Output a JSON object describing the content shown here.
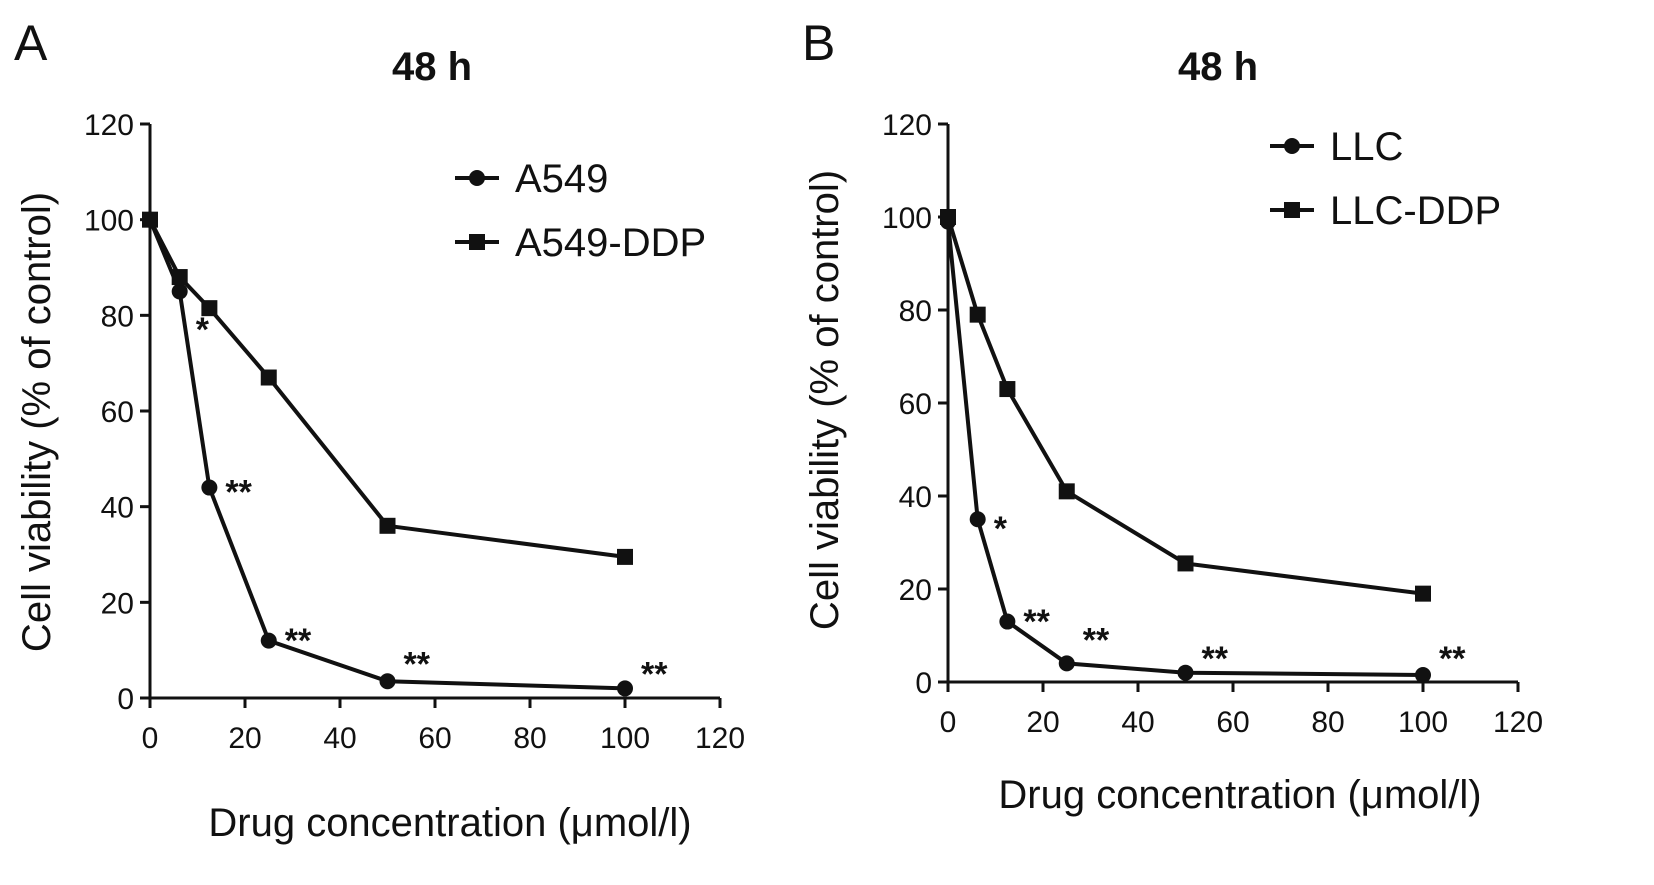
{
  "chart_data": [
    {
      "panel": "A",
      "type": "line",
      "title": "48 h",
      "xlabel": "Drug concentration (μmol/l)",
      "ylabel": "Cell viability  (% of control)",
      "xlim": [
        0,
        120
      ],
      "ylim": [
        0,
        120
      ],
      "xticks": [
        "0",
        "20",
        "40",
        "60",
        "80",
        "100",
        "120"
      ],
      "yticks": [
        "0",
        "20",
        "40",
        "60",
        "80",
        "100",
        "120"
      ],
      "x": [
        0,
        6.25,
        12.5,
        25,
        50,
        100
      ],
      "series": [
        {
          "name": "A549",
          "marker": "circle",
          "values": [
            100,
            85,
            44,
            12,
            3.5,
            2
          ]
        },
        {
          "name": "A549-DDP",
          "marker": "square",
          "values": [
            100,
            88,
            81.5,
            67,
            36,
            29.5
          ]
        }
      ],
      "annotations": [
        {
          "x": 6.25,
          "y": 78,
          "text": "*"
        },
        {
          "x": 12.5,
          "y": 44,
          "text": "**"
        },
        {
          "x": 25,
          "y": 13,
          "text": "**"
        },
        {
          "x": 50,
          "y": 8,
          "text": "**"
        },
        {
          "x": 100,
          "y": 6,
          "text": "**"
        }
      ],
      "legend_position": "top-right",
      "grid": false
    },
    {
      "panel": "B",
      "type": "line",
      "title": "48 h",
      "xlabel": "Drug concentration (μmol/l)",
      "ylabel": "Cell viability  (% of control)",
      "xlim": [
        0,
        120
      ],
      "ylim": [
        0,
        120
      ],
      "xticks": [
        "0",
        "20",
        "40",
        "60",
        "80",
        "100",
        "120"
      ],
      "yticks": [
        "0",
        "20",
        "40",
        "60",
        "80",
        "100",
        "120"
      ],
      "x": [
        0,
        6.25,
        12.5,
        25,
        50,
        100
      ],
      "series": [
        {
          "name": "LLC",
          "marker": "circle",
          "values": [
            99,
            35,
            13,
            4,
            2,
            1.5
          ]
        },
        {
          "name": "LLC-DDP",
          "marker": "square",
          "values": [
            100,
            79,
            63,
            41,
            25.5,
            19
          ]
        }
      ],
      "annotations": [
        {
          "x": 6.25,
          "y": 34,
          "text": "*"
        },
        {
          "x": 12.5,
          "y": 14,
          "text": "**"
        },
        {
          "x": 25,
          "y": 10,
          "text": "**"
        },
        {
          "x": 50,
          "y": 6,
          "text": "**"
        },
        {
          "x": 100,
          "y": 6,
          "text": "**"
        }
      ],
      "legend_position": "top-right",
      "grid": false
    }
  ]
}
